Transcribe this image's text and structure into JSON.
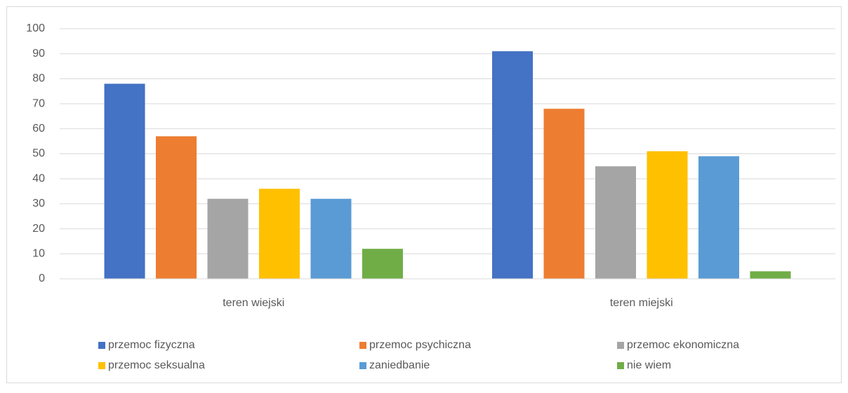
{
  "chart_data": {
    "type": "bar",
    "categories": [
      "teren wiejski",
      "teren miejski"
    ],
    "series": [
      {
        "name": "przemoc fizyczna",
        "color": "#4472c4",
        "values": [
          78,
          91
        ]
      },
      {
        "name": "przemoc psychiczna",
        "color": "#ed7d31",
        "values": [
          57,
          68
        ]
      },
      {
        "name": "przemoc ekonomiczna",
        "color": "#a5a5a5",
        "values": [
          32,
          45
        ]
      },
      {
        "name": "przemoc seksualna",
        "color": "#ffc000",
        "values": [
          36,
          51
        ]
      },
      {
        "name": "zaniedbanie",
        "color": "#5b9bd5",
        "values": [
          32,
          49
        ]
      },
      {
        "name": "nie wiem",
        "color": "#70ad47",
        "values": [
          12,
          3
        ]
      }
    ],
    "ylim": [
      0,
      100
    ],
    "yticks": [
      0,
      10,
      20,
      30,
      40,
      50,
      60,
      70,
      80,
      90,
      100
    ],
    "grid": true,
    "legend": "bottom"
  }
}
